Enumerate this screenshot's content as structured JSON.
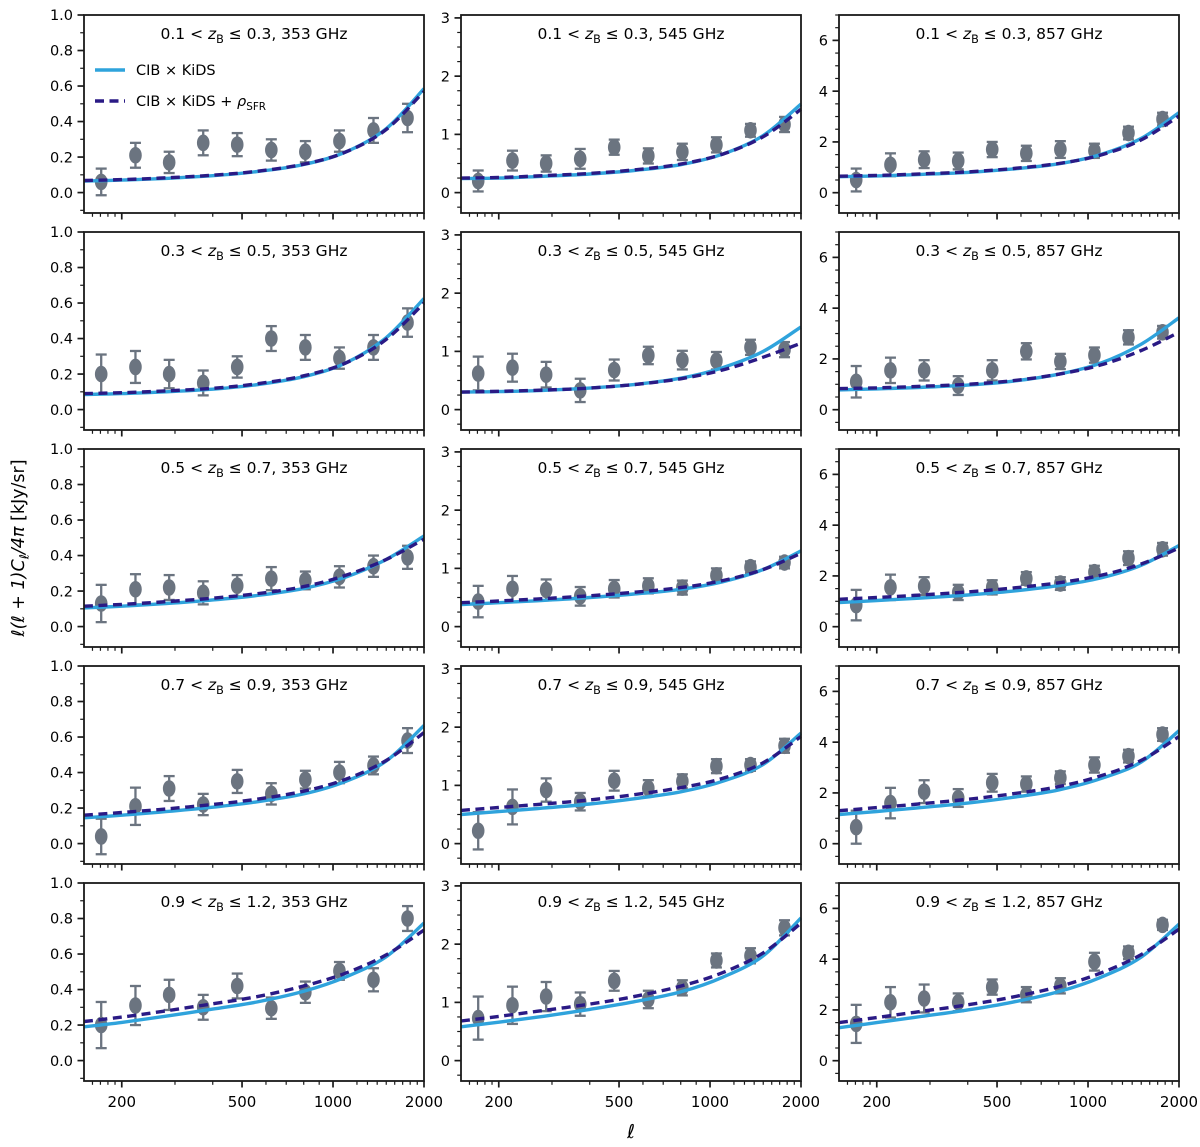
{
  "figure": {
    "description": "Grid of 15 angular cross power spectrum panels, CIB x KiDS tomographic bins (rows) by Planck frequency (columns)",
    "xlabel": "ℓ",
    "ylabel_parts": [
      {
        "t": "ℓ(ℓ + 1)",
        "italic": true
      },
      {
        "t": "C",
        "italic": true
      },
      {
        "t": "ℓ",
        "sub": true,
        "italic": true
      },
      {
        "t": "/4π",
        "italic": true
      },
      {
        "t": " [kJy/sr]",
        "italic": false
      }
    ]
  },
  "legend": {
    "items": [
      {
        "style": "solid",
        "color": "#2fa3dc",
        "label_parts": [
          {
            "t": "CIB × KiDS"
          }
        ]
      },
      {
        "style": "dashed",
        "color": "#2a1a85",
        "label_parts": [
          {
            "t": "CIB × KiDS + "
          },
          {
            "t": "ρ",
            "italic": true
          },
          {
            "t": "SFR",
            "sub": true
          }
        ]
      }
    ]
  },
  "colors": {
    "solid_model": "#2fa3dc",
    "dashed_model": "#2a1a85",
    "marker": "#6b7480",
    "errorbar": "#6b7480",
    "text": "#000000",
    "spine": "#1a1a1a",
    "background": "#ffffff"
  },
  "chart_data": {
    "type": "line",
    "grid": {
      "rows": 5,
      "cols": 3
    },
    "xscale": "log",
    "xlim": [
      150,
      2000
    ],
    "xticks": [
      200,
      500,
      1000,
      2000
    ],
    "xtick_labels": [
      "200",
      "500",
      "1000",
      "2000"
    ],
    "xminor": [
      160,
      170,
      180,
      190,
      300,
      400,
      600,
      700,
      800,
      900,
      1200,
      1300,
      1400,
      1500,
      1600,
      1700,
      1800,
      1900
    ],
    "x_bins": [
      171,
      222,
      287,
      372,
      482,
      625,
      810,
      1050,
      1361,
      1764
    ],
    "curve_x": [
      150,
      200,
      280,
      400,
      560,
      800,
      1100,
      1500,
      2000
    ],
    "columns": [
      {
        "freq": "353 GHz",
        "ylim": [
          -0.115,
          1.0
        ],
        "yticks": [
          0.0,
          0.2,
          0.4,
          0.6,
          0.8,
          1.0
        ],
        "ytick_labels": [
          "0.0",
          "0.2",
          "0.4",
          "0.6",
          "0.8",
          "1.0"
        ],
        "yminor_step": 0.1
      },
      {
        "freq": "545 GHz",
        "ylim": [
          -0.35,
          3.05
        ],
        "yticks": [
          0,
          1,
          2,
          3
        ],
        "ytick_labels": [
          "0",
          "1",
          "2",
          "3"
        ],
        "yminor_step": 0.25
      },
      {
        "freq": "857 GHz",
        "ylim": [
          -0.8,
          7.0
        ],
        "yticks": [
          0,
          2,
          4,
          6
        ],
        "ytick_labels": [
          "0",
          "2",
          "4",
          "6"
        ],
        "yminor_step": 0.5
      }
    ],
    "panels": [
      {
        "row": 0,
        "col": 0,
        "title_parts": [
          {
            "t": "0.1 < "
          },
          {
            "t": "z",
            "italic": true
          },
          {
            "t": "B",
            "sub": true
          },
          {
            "t": " ≤ 0.3, 353 GHz"
          }
        ],
        "y": [
          0.06,
          0.21,
          0.17,
          0.28,
          0.27,
          0.24,
          0.23,
          0.29,
          0.35,
          0.42
        ],
        "yerr": [
          0.075,
          0.07,
          0.06,
          0.07,
          0.065,
          0.06,
          0.06,
          0.06,
          0.07,
          0.08
        ],
        "solid": [
          0.065,
          0.07,
          0.08,
          0.095,
          0.118,
          0.158,
          0.228,
          0.36,
          0.585
        ],
        "dashed": [
          0.068,
          0.073,
          0.083,
          0.098,
          0.12,
          0.16,
          0.228,
          0.355,
          0.57
        ],
        "show_legend": true
      },
      {
        "row": 0,
        "col": 1,
        "title_parts": [
          {
            "t": "0.1 < "
          },
          {
            "t": "z",
            "italic": true
          },
          {
            "t": "B",
            "sub": true
          },
          {
            "t": " ≤ 0.3, 545 GHz"
          }
        ],
        "y": [
          0.2,
          0.55,
          0.5,
          0.58,
          0.78,
          0.63,
          0.7,
          0.82,
          1.07,
          1.17
        ],
        "yerr": [
          0.18,
          0.17,
          0.14,
          0.17,
          0.13,
          0.13,
          0.14,
          0.13,
          0.11,
          0.13
        ],
        "solid": [
          0.24,
          0.25,
          0.28,
          0.32,
          0.38,
          0.48,
          0.66,
          0.98,
          1.52
        ],
        "dashed": [
          0.25,
          0.26,
          0.29,
          0.33,
          0.39,
          0.49,
          0.66,
          0.96,
          1.43
        ]
      },
      {
        "row": 0,
        "col": 2,
        "title_parts": [
          {
            "t": "0.1 < "
          },
          {
            "t": "z",
            "italic": true
          },
          {
            "t": "B",
            "sub": true
          },
          {
            "t": " ≤ 0.3, 857 GHz"
          }
        ],
        "y": [
          0.5,
          1.1,
          1.3,
          1.25,
          1.7,
          1.55,
          1.7,
          1.65,
          2.35,
          2.9
        ],
        "yerr": [
          0.45,
          0.45,
          0.33,
          0.33,
          0.3,
          0.3,
          0.33,
          0.28,
          0.25,
          0.25
        ],
        "solid": [
          0.63,
          0.66,
          0.72,
          0.8,
          0.93,
          1.14,
          1.5,
          2.14,
          3.15
        ],
        "dashed": [
          0.65,
          0.68,
          0.74,
          0.82,
          0.95,
          1.15,
          1.48,
          2.08,
          3.02
        ]
      },
      {
        "row": 1,
        "col": 0,
        "title_parts": [
          {
            "t": "0.3 < "
          },
          {
            "t": "z",
            "italic": true
          },
          {
            "t": "B",
            "sub": true
          },
          {
            "t": " ≤ 0.5, 353 GHz"
          }
        ],
        "y": [
          0.2,
          0.24,
          0.2,
          0.15,
          0.24,
          0.4,
          0.35,
          0.29,
          0.35,
          0.49
        ],
        "yerr": [
          0.11,
          0.09,
          0.08,
          0.07,
          0.06,
          0.07,
          0.07,
          0.06,
          0.07,
          0.08
        ],
        "solid": [
          0.085,
          0.09,
          0.1,
          0.115,
          0.14,
          0.185,
          0.262,
          0.405,
          0.625
        ],
        "dashed": [
          0.09,
          0.095,
          0.105,
          0.12,
          0.145,
          0.19,
          0.262,
          0.395,
          0.6
        ]
      },
      {
        "row": 1,
        "col": 1,
        "title_parts": [
          {
            "t": "0.3 < "
          },
          {
            "t": "z",
            "italic": true
          },
          {
            "t": "B",
            "sub": true
          },
          {
            "t": " ≤ 0.5, 545 GHz"
          }
        ],
        "y": [
          0.62,
          0.72,
          0.6,
          0.33,
          0.68,
          0.93,
          0.85,
          0.84,
          1.07,
          1.03
        ],
        "yerr": [
          0.29,
          0.24,
          0.22,
          0.2,
          0.18,
          0.15,
          0.16,
          0.15,
          0.13,
          0.13
        ],
        "solid": [
          0.3,
          0.31,
          0.33,
          0.37,
          0.43,
          0.54,
          0.72,
          1.0,
          1.42
        ],
        "dashed": [
          0.3,
          0.315,
          0.335,
          0.37,
          0.43,
          0.53,
          0.68,
          0.9,
          1.14
        ]
      },
      {
        "row": 1,
        "col": 2,
        "title_parts": [
          {
            "t": "0.3 < "
          },
          {
            "t": "z",
            "italic": true
          },
          {
            "t": "B",
            "sub": true
          },
          {
            "t": " ≤ 0.5, 857 GHz"
          }
        ],
        "y": [
          1.1,
          1.55,
          1.55,
          0.95,
          1.55,
          2.3,
          1.9,
          2.15,
          2.85,
          3.05
        ],
        "yerr": [
          0.62,
          0.5,
          0.4,
          0.37,
          0.4,
          0.32,
          0.3,
          0.3,
          0.28,
          0.25
        ],
        "solid": [
          0.78,
          0.82,
          0.88,
          0.97,
          1.12,
          1.4,
          1.83,
          2.58,
          3.62
        ],
        "dashed": [
          0.83,
          0.86,
          0.92,
          1.0,
          1.14,
          1.4,
          1.76,
          2.33,
          3.05
        ]
      },
      {
        "row": 2,
        "col": 0,
        "title_parts": [
          {
            "t": "0.5 < "
          },
          {
            "t": "z",
            "italic": true
          },
          {
            "t": "B",
            "sub": true
          },
          {
            "t": " ≤ 0.7, 353 GHz"
          }
        ],
        "y": [
          0.13,
          0.21,
          0.22,
          0.19,
          0.23,
          0.27,
          0.26,
          0.28,
          0.34,
          0.39
        ],
        "yerr": [
          0.105,
          0.085,
          0.07,
          0.065,
          0.06,
          0.065,
          0.05,
          0.06,
          0.06,
          0.065
        ],
        "solid": [
          0.105,
          0.115,
          0.13,
          0.15,
          0.175,
          0.215,
          0.278,
          0.378,
          0.51
        ],
        "dashed": [
          0.115,
          0.125,
          0.14,
          0.16,
          0.185,
          0.225,
          0.288,
          0.378,
          0.492
        ]
      },
      {
        "row": 2,
        "col": 1,
        "title_parts": [
          {
            "t": "0.5 < "
          },
          {
            "t": "z",
            "italic": true
          },
          {
            "t": "B",
            "sub": true
          },
          {
            "t": " ≤ 0.7, 545 GHz"
          }
        ],
        "y": [
          0.43,
          0.65,
          0.63,
          0.52,
          0.65,
          0.7,
          0.67,
          0.88,
          1.02,
          1.1
        ],
        "yerr": [
          0.27,
          0.22,
          0.18,
          0.16,
          0.15,
          0.13,
          0.12,
          0.12,
          0.1,
          0.1
        ],
        "solid": [
          0.38,
          0.41,
          0.45,
          0.5,
          0.56,
          0.64,
          0.77,
          0.98,
          1.3
        ],
        "dashed": [
          0.41,
          0.44,
          0.48,
          0.53,
          0.59,
          0.67,
          0.79,
          0.98,
          1.26
        ]
      },
      {
        "row": 2,
        "col": 2,
        "title_parts": [
          {
            "t": "0.5 < "
          },
          {
            "t": "z",
            "italic": true
          },
          {
            "t": "B",
            "sub": true
          },
          {
            "t": " ≤ 0.7, 857 GHz"
          }
        ],
        "y": [
          0.85,
          1.55,
          1.6,
          1.35,
          1.55,
          1.9,
          1.7,
          2.15,
          2.7,
          3.05
        ],
        "yerr": [
          0.6,
          0.5,
          0.35,
          0.3,
          0.28,
          0.25,
          0.25,
          0.25,
          0.27,
          0.25
        ],
        "solid": [
          0.95,
          1.03,
          1.13,
          1.25,
          1.4,
          1.62,
          1.92,
          2.42,
          3.2
        ],
        "dashed": [
          1.08,
          1.15,
          1.25,
          1.37,
          1.52,
          1.73,
          2.02,
          2.47,
          3.1
        ]
      },
      {
        "row": 3,
        "col": 0,
        "title_parts": [
          {
            "t": "0.7 < "
          },
          {
            "t": "z",
            "italic": true
          },
          {
            "t": "B",
            "sub": true
          },
          {
            "t": " ≤ 0.9, 353 GHz"
          }
        ],
        "y": [
          0.04,
          0.21,
          0.31,
          0.22,
          0.35,
          0.28,
          0.36,
          0.4,
          0.44,
          0.58
        ],
        "yerr": [
          0.1,
          0.105,
          0.07,
          0.06,
          0.065,
          0.06,
          0.05,
          0.06,
          0.05,
          0.07
        ],
        "solid": [
          0.145,
          0.16,
          0.18,
          0.205,
          0.235,
          0.28,
          0.35,
          0.465,
          0.665
        ],
        "dashed": [
          0.16,
          0.175,
          0.195,
          0.22,
          0.25,
          0.295,
          0.362,
          0.468,
          0.625
        ]
      },
      {
        "row": 3,
        "col": 1,
        "title_parts": [
          {
            "t": "0.7 < "
          },
          {
            "t": "z",
            "italic": true
          },
          {
            "t": "B",
            "sub": true
          },
          {
            "t": " ≤ 0.9, 545 GHz"
          }
        ],
        "y": [
          0.22,
          0.63,
          0.92,
          0.72,
          1.08,
          0.95,
          1.07,
          1.33,
          1.35,
          1.68
        ],
        "yerr": [
          0.32,
          0.3,
          0.2,
          0.15,
          0.17,
          0.14,
          0.12,
          0.12,
          0.1,
          0.12
        ],
        "solid": [
          0.5,
          0.55,
          0.61,
          0.68,
          0.77,
          0.89,
          1.07,
          1.36,
          1.9
        ],
        "dashed": [
          0.57,
          0.62,
          0.68,
          0.75,
          0.84,
          0.96,
          1.12,
          1.39,
          1.84
        ]
      },
      {
        "row": 3,
        "col": 2,
        "title_parts": [
          {
            "t": "0.7 < "
          },
          {
            "t": "z",
            "italic": true
          },
          {
            "t": "B",
            "sub": true
          },
          {
            "t": " ≤ 0.9, 857 GHz"
          }
        ],
        "y": [
          0.65,
          1.6,
          2.05,
          1.8,
          2.4,
          2.35,
          2.6,
          3.1,
          3.45,
          4.3
        ],
        "yerr": [
          0.65,
          0.6,
          0.45,
          0.35,
          0.35,
          0.3,
          0.25,
          0.3,
          0.25,
          0.25
        ],
        "solid": [
          1.15,
          1.27,
          1.42,
          1.6,
          1.82,
          2.12,
          2.56,
          3.22,
          4.45
        ],
        "dashed": [
          1.3,
          1.42,
          1.57,
          1.75,
          1.96,
          2.25,
          2.67,
          3.28,
          4.22
        ]
      },
      {
        "row": 4,
        "col": 0,
        "title_parts": [
          {
            "t": "0.9 < "
          },
          {
            "t": "z",
            "italic": true
          },
          {
            "t": "B",
            "sub": true
          },
          {
            "t": " ≤ 1.2, 353 GHz"
          }
        ],
        "y": [
          0.2,
          0.31,
          0.37,
          0.3,
          0.42,
          0.295,
          0.385,
          0.505,
          0.455,
          0.8
        ],
        "yerr": [
          0.13,
          0.11,
          0.085,
          0.07,
          0.07,
          0.06,
          0.06,
          0.05,
          0.065,
          0.07
        ],
        "solid": [
          0.19,
          0.215,
          0.25,
          0.29,
          0.33,
          0.39,
          0.47,
          0.585,
          0.775
        ],
        "dashed": [
          0.22,
          0.245,
          0.28,
          0.32,
          0.36,
          0.42,
          0.492,
          0.595,
          0.735
        ]
      },
      {
        "row": 4,
        "col": 1,
        "title_parts": [
          {
            "t": "0.9 < "
          },
          {
            "t": "z",
            "italic": true
          },
          {
            "t": "B",
            "sub": true
          },
          {
            "t": " ≤ 1.2, 545 GHz"
          }
        ],
        "y": [
          0.73,
          0.95,
          1.1,
          0.97,
          1.37,
          1.05,
          1.25,
          1.72,
          1.8,
          2.28
        ],
        "yerr": [
          0.37,
          0.32,
          0.25,
          0.2,
          0.17,
          0.15,
          0.13,
          0.12,
          0.13,
          0.13
        ],
        "solid": [
          0.58,
          0.66,
          0.76,
          0.88,
          1.01,
          1.18,
          1.43,
          1.8,
          2.45
        ],
        "dashed": [
          0.68,
          0.76,
          0.86,
          0.97,
          1.1,
          1.28,
          1.51,
          1.85,
          2.36
        ]
      },
      {
        "row": 4,
        "col": 2,
        "title_parts": [
          {
            "t": "0.9 < "
          },
          {
            "t": "z",
            "italic": true
          },
          {
            "t": "B",
            "sub": true
          },
          {
            "t": " ≤ 1.2, 857 GHz"
          }
        ],
        "y": [
          1.45,
          2.3,
          2.45,
          2.3,
          2.9,
          2.6,
          2.95,
          3.9,
          4.25,
          5.35
        ],
        "yerr": [
          0.75,
          0.6,
          0.55,
          0.35,
          0.3,
          0.3,
          0.3,
          0.35,
          0.25,
          0.2
        ],
        "solid": [
          1.3,
          1.5,
          1.74,
          2.0,
          2.3,
          2.72,
          3.28,
          4.08,
          5.38
        ],
        "dashed": [
          1.5,
          1.7,
          1.94,
          2.2,
          2.5,
          2.92,
          3.45,
          4.18,
          5.18
        ]
      }
    ]
  }
}
